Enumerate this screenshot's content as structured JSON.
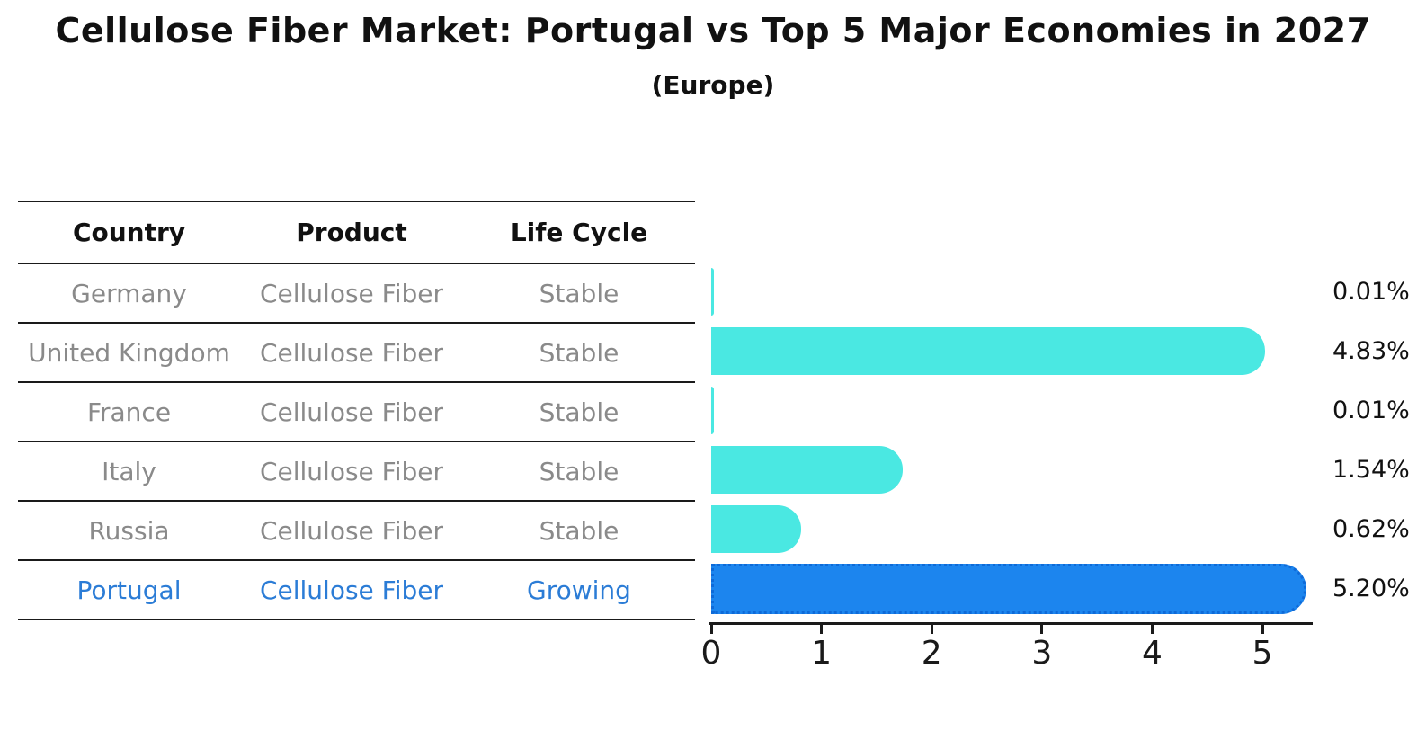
{
  "header": {
    "title": "Cellulose Fiber Market: Portugal vs Top 5 Major Economies in 2027",
    "subtitle": "(Europe)"
  },
  "table": {
    "columns": [
      "Country",
      "Product",
      "Life Cycle"
    ],
    "rows": [
      {
        "country": "Germany",
        "product": "Cellulose Fiber",
        "life_cycle": "Stable",
        "highlight": false
      },
      {
        "country": "United Kingdom",
        "product": "Cellulose Fiber",
        "life_cycle": "Stable",
        "highlight": false
      },
      {
        "country": "France",
        "product": "Cellulose Fiber",
        "life_cycle": "Stable",
        "highlight": false
      },
      {
        "country": "Italy",
        "product": "Cellulose Fiber",
        "life_cycle": "Stable",
        "highlight": false
      },
      {
        "country": "Russia",
        "product": "Cellulose Fiber",
        "life_cycle": "Stable",
        "highlight": false
      },
      {
        "country": "Portugal",
        "product": "Cellulose Fiber",
        "life_cycle": "Growing",
        "highlight": true
      }
    ]
  },
  "chart_data": {
    "type": "bar",
    "orientation": "horizontal",
    "title": "Cellulose Fiber Market: Portugal vs Top 5 Major Economies in 2027",
    "subtitle": "(Europe)",
    "categories": [
      "Germany",
      "United Kingdom",
      "France",
      "Italy",
      "Russia",
      "Portugal"
    ],
    "values": [
      0.01,
      4.83,
      0.01,
      1.54,
      0.62,
      5.2
    ],
    "value_labels": [
      "0.01%",
      "4.83%",
      "0.01%",
      "1.54%",
      "0.62%",
      "5.20%"
    ],
    "highlight_index": 5,
    "bar_color": "#4ae8e2",
    "highlight_bar_color": "#1c85ee",
    "highlight_text_color": "#2b7cd6",
    "x_ticks": [
      "0",
      "1",
      "2",
      "3",
      "4",
      "5"
    ],
    "xlim": [
      0,
      5.47
    ],
    "grid": false,
    "legend": false
  }
}
